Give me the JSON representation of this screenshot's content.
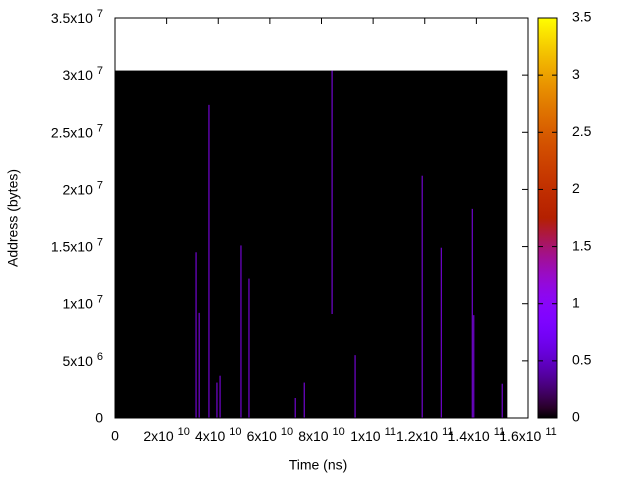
{
  "chart_data": {
    "type": "heatmap",
    "x_label": "Time (ns)",
    "y_label": "Address (bytes)",
    "xlim": [
      0,
      160000000000
    ],
    "ylim": [
      0,
      35000000
    ],
    "cblim": [
      0,
      3.5
    ],
    "xticks": [
      0,
      {
        "value": 20000000000,
        "label": "2x10",
        "exponent": "10"
      },
      {
        "value": 40000000000,
        "label": "4x10",
        "exponent": "10"
      },
      {
        "value": 60000000000,
        "label": "6x10",
        "exponent": "10"
      },
      {
        "value": 80000000000,
        "label": "8x10",
        "exponent": "10"
      },
      {
        "value": 100000000000,
        "label": "1x10",
        "exponent": "11"
      },
      {
        "value": 120000000000,
        "label": "1.2x10",
        "exponent": "11"
      },
      {
        "value": 140000000000,
        "label": "1.4x10",
        "exponent": "11"
      },
      {
        "value": 160000000000,
        "label": "1.6x10",
        "exponent": "11"
      }
    ],
    "yticks": [
      0,
      {
        "value": 5000000,
        "label": "5x10",
        "exponent": "6"
      },
      {
        "value": 10000000,
        "label": "1x10",
        "exponent": "7"
      },
      {
        "value": 15000000,
        "label": "1.5x10",
        "exponent": "7"
      },
      {
        "value": 20000000,
        "label": "2x10",
        "exponent": "7"
      },
      {
        "value": 25000000,
        "label": "2.5x10",
        "exponent": "7"
      },
      {
        "value": 30000000,
        "label": "3x10",
        "exponent": "7"
      },
      {
        "value": 35000000,
        "label": "3.5x10",
        "exponent": "7"
      }
    ],
    "cbticks": [
      0,
      0.5,
      1,
      1.5,
      2,
      2.5,
      3,
      3.5
    ],
    "extent_x": [
      0,
      152000000000
    ],
    "extent_y": [
      0,
      30400000
    ],
    "segments": [
      {
        "x": 31400000000,
        "y0": 0,
        "y1": 14500000,
        "value": 1
      },
      {
        "x": 32600000000,
        "y0": 0,
        "y1": 9200000,
        "value": 1
      },
      {
        "x": 36400000000,
        "y0": 0,
        "y1": 27400000,
        "value": 1
      },
      {
        "x": 39500000000,
        "y0": 0,
        "y1": 3100000,
        "value": 1
      },
      {
        "x": 40700000000,
        "y0": 0,
        "y1": 3700000,
        "value": 1
      },
      {
        "x": 48800000000,
        "y0": 0,
        "y1": 15100000,
        "value": 1
      },
      {
        "x": 51900000000,
        "y0": 0,
        "y1": 12200000,
        "value": 1
      },
      {
        "x": 69800000000,
        "y0": 0,
        "y1": 1750000,
        "value": 1
      },
      {
        "x": 73300000000,
        "y0": 0,
        "y1": 3100000,
        "value": 1
      },
      {
        "x": 84100000000,
        "y0": 9100000,
        "y1": 30400000,
        "value": 1
      },
      {
        "x": 93000000000,
        "y0": 0,
        "y1": 5500000,
        "value": 1
      },
      {
        "x": 119000000000,
        "y0": 0,
        "y1": 21200000,
        "value": 1
      },
      {
        "x": 126400000000,
        "y0": 0,
        "y1": 14900000,
        "value": 1
      },
      {
        "x": 138400000000,
        "y0": 0,
        "y1": 18300000,
        "value": 1
      },
      {
        "x": 139000000000,
        "y0": 0,
        "y1": 9000000,
        "value": 1
      },
      {
        "x": 150000000000,
        "y0": 0,
        "y1": 3000000,
        "value": 1
      }
    ]
  }
}
